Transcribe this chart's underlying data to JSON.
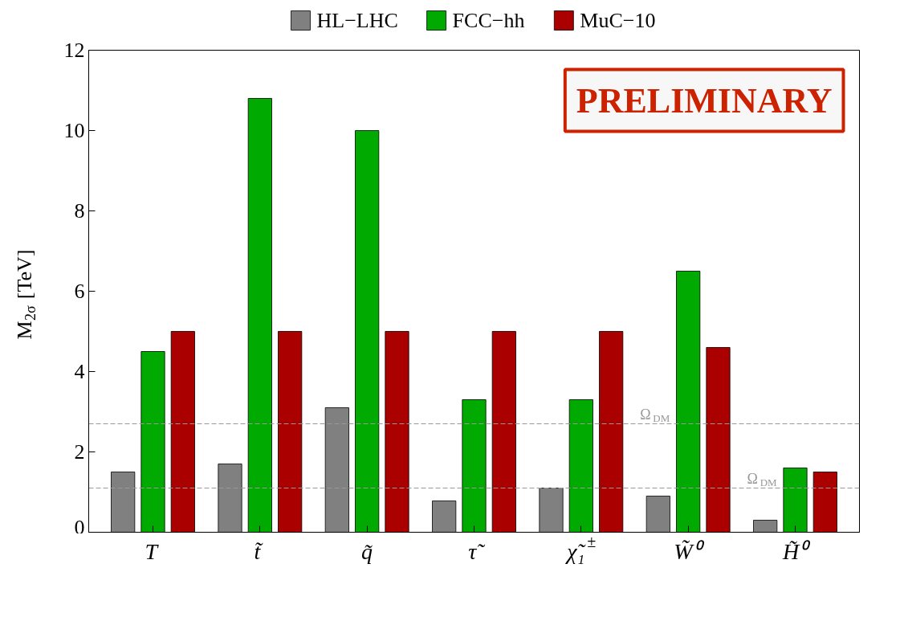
{
  "chart_data": {
    "type": "bar",
    "ylabel": "M$_{2σ}$ [TeV]",
    "categories": [
      "T",
      "t̃",
      "q̃",
      "τ̃",
      "χ̃₁$^{±}$",
      "W̃⁰",
      "H̃⁰"
    ],
    "series": [
      {
        "name": "HL−LHC",
        "color": "#808080",
        "values": [
          1.5,
          1.7,
          3.1,
          0.78,
          1.1,
          0.9,
          0.3
        ]
      },
      {
        "name": "FCC−hh",
        "color": "#00aa00",
        "values": [
          4.5,
          10.8,
          10.0,
          3.3,
          3.3,
          6.5,
          1.6
        ]
      },
      {
        "name": "MuC−10",
        "color": "#aa0000",
        "values": [
          5,
          5,
          5,
          5,
          5,
          4.6,
          1.5
        ]
      }
    ],
    "ylim": [
      0,
      12
    ],
    "yticks": [
      0,
      2,
      4,
      6,
      8,
      10,
      12
    ],
    "grid": false,
    "legend": "top",
    "annotations": [
      "PRELIMINARY"
    ],
    "ref_lines": [
      {
        "axis": "y",
        "value": 2.7,
        "label": "Ω$_{DM}$",
        "color": "#999999",
        "line_style": "dashed"
      },
      {
        "axis": "y",
        "value": 1.1,
        "label": "Ω$_{DM}$",
        "color": "#999999",
        "line_style": "dashed"
      }
    ]
  }
}
